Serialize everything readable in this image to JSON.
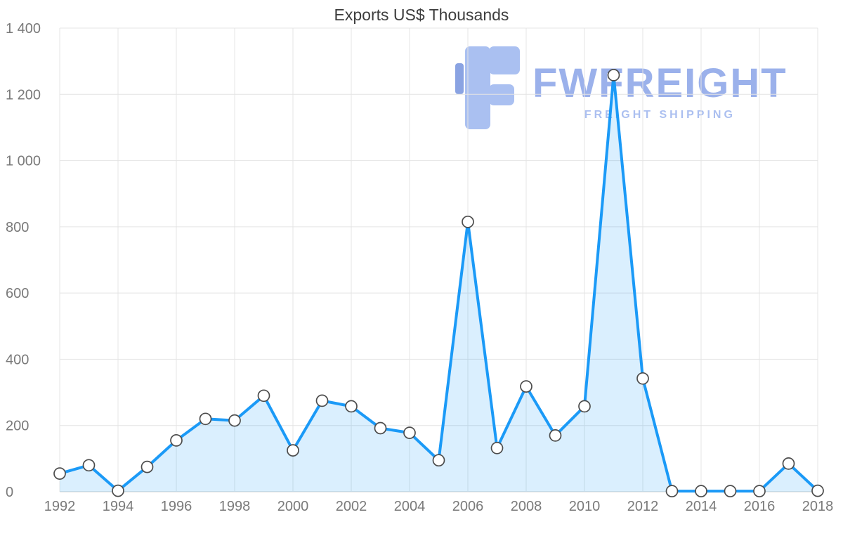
{
  "title": "Exports US$ Thousands",
  "watermark": {
    "brand": "FWFREIGHT",
    "tagline": "FREIGHT SHIPPING",
    "brand_color": "#8aa4e8",
    "tagline_color": "#9db5ee",
    "logo_main": "#9cb6ef",
    "logo_accent": "#7693dd"
  },
  "chart_data": {
    "type": "area",
    "title": "Exports US$ Thousands",
    "xlabel": "",
    "ylabel": "",
    "x": [
      1992,
      1993,
      1994,
      1995,
      1996,
      1997,
      1998,
      1999,
      2000,
      2001,
      2002,
      2003,
      2004,
      2005,
      2006,
      2007,
      2008,
      2009,
      2010,
      2011,
      2012,
      2013,
      2014,
      2015,
      2016,
      2017,
      2018
    ],
    "values": [
      55,
      80,
      3,
      75,
      155,
      220,
      215,
      290,
      125,
      275,
      258,
      192,
      178,
      95,
      815,
      132,
      318,
      170,
      258,
      1258,
      342,
      2,
      2,
      2,
      2,
      85,
      3
    ],
    "ylim": [
      0,
      1400
    ],
    "yticks": [
      0,
      200,
      400,
      600,
      800,
      1000,
      1200,
      1400
    ],
    "ytick_labels": [
      "0",
      "200",
      "400",
      "600",
      "800",
      "1 000",
      "1 200",
      "1 400"
    ],
    "xticks": [
      1992,
      1994,
      1996,
      1998,
      2000,
      2002,
      2004,
      2006,
      2008,
      2010,
      2012,
      2014,
      2016,
      2018
    ],
    "grid": true,
    "legend": false,
    "fill_opacity": 0.16,
    "marker_radius": 8,
    "line_width": 4,
    "colors": {
      "line": "#1b9af7",
      "fill": "#1b9af7",
      "marker_fill": "#ffffff",
      "marker_stroke": "#4c4c4c",
      "grid": "#e4e4e4",
      "axis": "#cccccc",
      "tick_label": "#7a7a7a",
      "title": "#3d3d3d"
    }
  }
}
